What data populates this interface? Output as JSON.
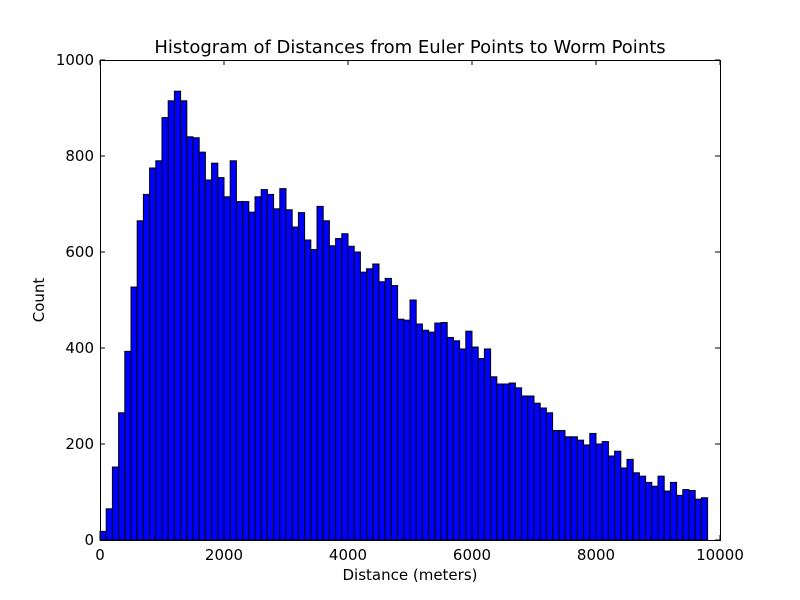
{
  "chart_data": {
    "type": "bar",
    "title": "Histogram of Distances from Euler Points to Worm Points",
    "xlabel": "Distance (meters)",
    "ylabel": "Count",
    "xlim": [
      0,
      10000
    ],
    "ylim": [
      0,
      1000
    ],
    "bin_width": 100,
    "xticks": [
      "0",
      "2000",
      "4000",
      "6000",
      "8000",
      "10000"
    ],
    "yticks": [
      "0",
      "200",
      "400",
      "600",
      "800",
      "1000"
    ],
    "grid": false,
    "bar_color": "#0000ff",
    "edge_color": "#000000",
    "values": [
      18,
      65,
      152,
      265,
      393,
      527,
      665,
      720,
      775,
      790,
      880,
      915,
      935,
      915,
      840,
      838,
      808,
      750,
      785,
      755,
      715,
      790,
      705,
      705,
      683,
      715,
      730,
      720,
      690,
      732,
      688,
      652,
      682,
      625,
      605,
      695,
      665,
      613,
      628,
      638,
      612,
      600,
      558,
      565,
      575,
      538,
      545,
      530,
      460,
      458,
      500,
      450,
      437,
      433,
      452,
      453,
      422,
      415,
      398,
      435,
      402,
      378,
      398,
      340,
      325,
      325,
      327,
      317,
      300,
      300,
      285,
      275,
      265,
      228,
      228,
      215,
      215,
      208,
      198,
      222,
      200,
      205,
      175,
      185,
      150,
      168,
      140,
      133,
      120,
      112,
      133,
      102,
      120,
      93,
      105,
      103,
      85,
      88
    ]
  }
}
